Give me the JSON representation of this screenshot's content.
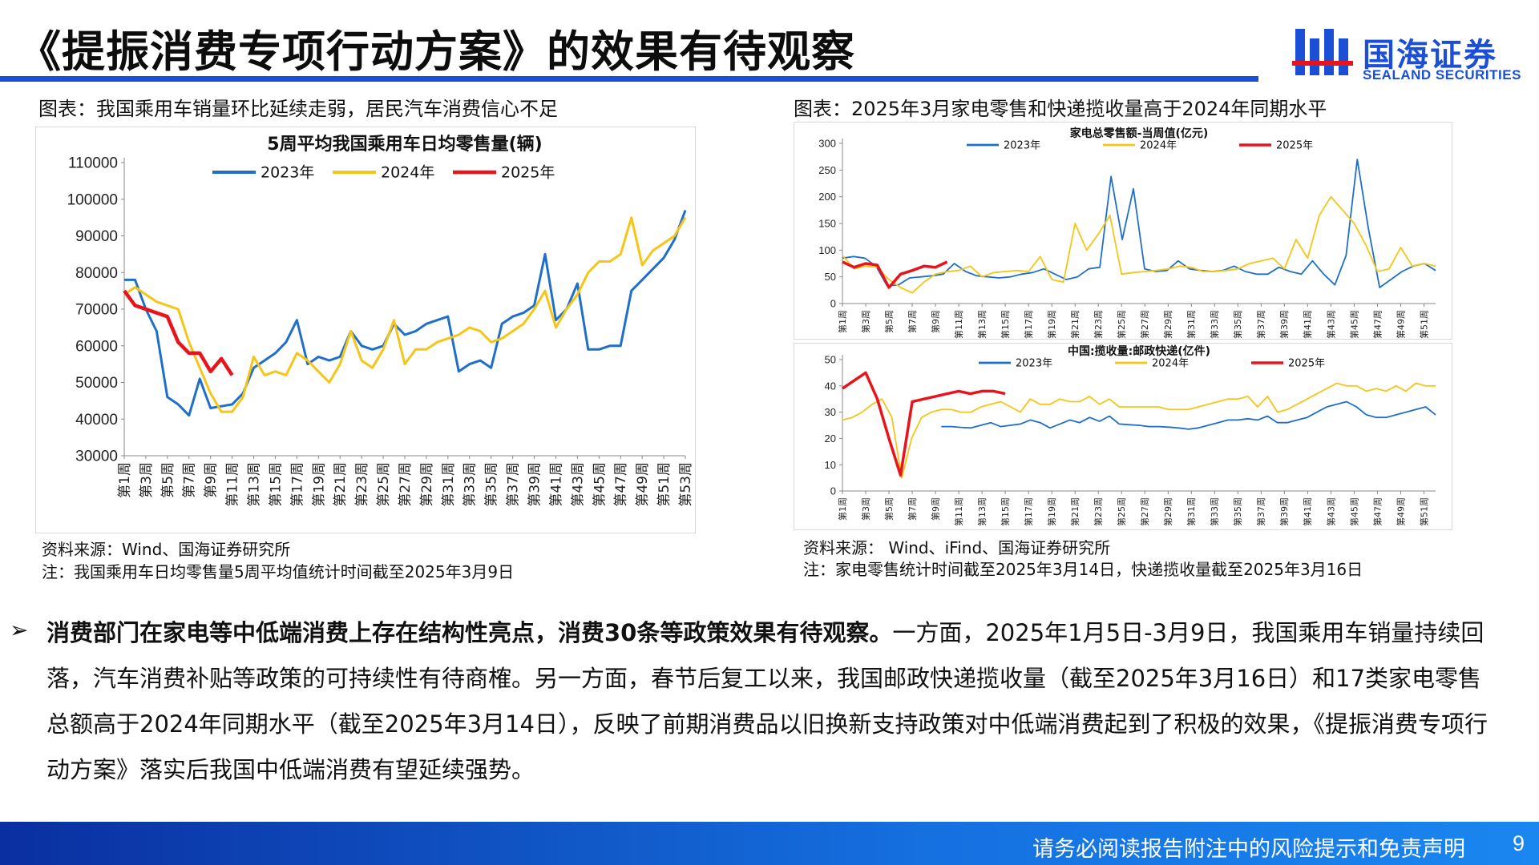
{
  "header": {
    "title": "《提振消费专项行动方案》的效果有待观察",
    "logo_cn": "国海证券",
    "logo_en": "SEALAND SECURITIES"
  },
  "colors": {
    "brand": "#1a4fd6",
    "s2023": "#1f6fc9",
    "s2024": "#f5c518",
    "s2025": "#e8141b"
  },
  "left": {
    "caption": "图表：我国乘用车销量环比延续走弱，居民汽车消费信心不足",
    "source": "资料来源：Wind、国海证券研究所",
    "note": "注：我国乘用车日均零售量5周平均值统计时间截至2025年3月9日"
  },
  "right": {
    "caption": "图表：2025年3月家电零售和快递揽收量高于2024年同期水平",
    "source": "资料来源： Wind、iFind、国海证券研究所",
    "note": "注：家电零售统计时间截至2025年3月14日，快递揽收量截至2025年3月16日"
  },
  "body": {
    "bullet": "➢",
    "bold": "消费部门在家电等中低端消费上存在结构性亮点，消费30条等政策效果有待观察。",
    "rest": "一方面，2025年1月5日-3月9日，我国乘用车销量持续回落，汽车消费补贴等政策的可持续性有待商榷。另一方面，春节后复工以来，我国邮政快递揽收量（截至2025年3月16日）和17类家电零售总额高于2024年同期水平（截至2025年3月14日），反映了前期消费品以旧换新支持政策对中低端消费起到了积极的效果，《提振消费专项行动方案》落实后我国中低端消费有望延续强势。"
  },
  "footer": {
    "disclaimer": "请务必阅读报告附注中的风险提示和免责声明",
    "page": "9"
  },
  "chart_data": [
    {
      "type": "line",
      "title": "5周平均我国乘用车日均零售量(辆)",
      "ylim": [
        30000,
        110000
      ],
      "yticks": [
        30000,
        40000,
        50000,
        60000,
        70000,
        80000,
        90000,
        100000,
        110000
      ],
      "xticks": [
        "第1周",
        "第3周",
        "第5周",
        "第7周",
        "第9周",
        "第11周",
        "第13周",
        "第15周",
        "第17周",
        "第19周",
        "第21周",
        "第23周",
        "第25周",
        "第27周",
        "第29周",
        "第31周",
        "第33周",
        "第35周",
        "第37周",
        "第39周",
        "第41周",
        "第43周",
        "第45周",
        "第47周",
        "第49周",
        "第51周",
        "第53周"
      ],
      "x_range": [
        1,
        53
      ],
      "legend": "top-center",
      "series": [
        {
          "name": "2023年",
          "color": "#1f6fc9",
          "values": [
            78000,
            78000,
            70000,
            64000,
            46000,
            44000,
            41000,
            51000,
            43000,
            43500,
            44000,
            47000,
            54000,
            56000,
            58000,
            61000,
            67000,
            55000,
            57000,
            56000,
            57000,
            64000,
            60000,
            59000,
            60000,
            66000,
            63000,
            64000,
            66000,
            67000,
            68000,
            53000,
            55000,
            56000,
            54000,
            66000,
            68000,
            69000,
            71000,
            85000,
            67000,
            70000,
            77000,
            59000,
            59000,
            60000,
            60000,
            75000,
            78000,
            81000,
            84000,
            89000,
            97000
          ]
        },
        {
          "name": "2024年",
          "color": "#f5c518",
          "values": [
            74000,
            76000,
            74000,
            72000,
            71000,
            70000,
            61000,
            54000,
            47000,
            42000,
            42000,
            46000,
            57000,
            52000,
            53000,
            52000,
            58000,
            56000,
            53000,
            50000,
            55000,
            64000,
            56000,
            54000,
            59000,
            67000,
            55000,
            59000,
            59000,
            61000,
            62000,
            63000,
            65000,
            64000,
            61000,
            62000,
            64000,
            66000,
            70000,
            75000,
            65000,
            70000,
            74000,
            80000,
            83000,
            83000,
            85000,
            95000,
            82000,
            86000,
            88000,
            90000,
            95000
          ]
        },
        {
          "name": "2025年",
          "color": "#e8141b",
          "values": [
            75000,
            71000,
            70000,
            69000,
            68000,
            61000,
            58000,
            58000,
            53000,
            56500,
            52000
          ]
        }
      ]
    },
    {
      "type": "line",
      "title": "家电总零售额-当周值(亿元)",
      "ylim": [
        0,
        300
      ],
      "yticks": [
        0,
        50,
        100,
        150,
        200,
        250,
        300
      ],
      "xticks": [
        "第1周",
        "第3周",
        "第5周",
        "第7周",
        "第9周",
        "第11周",
        "第13周",
        "第15周",
        "第17周",
        "第19周",
        "第21周",
        "第23周",
        "第25周",
        "第27周",
        "第29周",
        "第31周",
        "第33周",
        "第35周",
        "第37周",
        "第39周",
        "第41周",
        "第43周",
        "第45周",
        "第47周",
        "第49周",
        "第51周"
      ],
      "x_range": [
        1,
        52
      ],
      "legend": "top",
      "series": [
        {
          "name": "2023年",
          "color": "#1f6fc9",
          "values": [
            85,
            88,
            85,
            70,
            33,
            35,
            48,
            50,
            52,
            55,
            75,
            60,
            52,
            50,
            48,
            50,
            55,
            58,
            65,
            55,
            45,
            50,
            65,
            68,
            238,
            120,
            215,
            65,
            60,
            62,
            80,
            65,
            62,
            60,
            62,
            70,
            60,
            55,
            55,
            68,
            60,
            55,
            80,
            55,
            35,
            90,
            270,
            140,
            30,
            45,
            60,
            70,
            75,
            62
          ]
        },
        {
          "name": "2024年",
          "color": "#f5c518",
          "values": [
            90,
            65,
            70,
            68,
            45,
            30,
            20,
            40,
            55,
            60,
            62,
            70,
            50,
            58,
            60,
            62,
            60,
            88,
            45,
            40,
            150,
            100,
            130,
            165,
            55,
            58,
            60,
            62,
            65,
            70,
            68,
            60,
            60,
            62,
            65,
            75,
            80,
            85,
            65,
            120,
            85,
            165,
            200,
            175,
            150,
            110,
            60,
            65,
            105,
            70,
            75,
            70
          ]
        },
        {
          "name": "2025年",
          "color": "#e8141b",
          "values": [
            78,
            68,
            75,
            72,
            30,
            55,
            62,
            70,
            68,
            78
          ]
        }
      ]
    },
    {
      "type": "line",
      "title": "中国:揽收量:邮政快递(亿件)",
      "ylim": [
        0,
        50
      ],
      "yticks": [
        0,
        10,
        20,
        30,
        40,
        50
      ],
      "xticks": [
        "第1周",
        "第3周",
        "第5周",
        "第7周",
        "第9周",
        "第11周",
        "第13周",
        "第15周",
        "第17周",
        "第19周",
        "第21周",
        "第23周",
        "第25周",
        "第27周",
        "第29周",
        "第31周",
        "第33周",
        "第35周",
        "第37周",
        "第39周",
        "第41周",
        "第43周",
        "第45周",
        "第47周",
        "第49周",
        "第51周"
      ],
      "x_range": [
        1,
        52
      ],
      "legend": "top",
      "series": [
        {
          "name": "2023年",
          "color": "#1f6fc9",
          "values": [
            null,
            null,
            null,
            null,
            null,
            null,
            null,
            null,
            null,
            null,
            24.5,
            24.5,
            24.2,
            24,
            25,
            26,
            24.5,
            25,
            25.5,
            27,
            26,
            24,
            25.5,
            27,
            26,
            28,
            26.5,
            28.5,
            25.5,
            25.2,
            25,
            24.5,
            24.5,
            24.3,
            24,
            23.5,
            24,
            25,
            26,
            27,
            27,
            27.5,
            27,
            28.5,
            26,
            26,
            27,
            28,
            30,
            32,
            33,
            34,
            32,
            29,
            28,
            28,
            29,
            30,
            31,
            32,
            29
          ]
        },
        {
          "name": "2024年",
          "color": "#f5c518",
          "values": [
            27,
            28,
            30,
            33,
            35,
            28,
            5,
            20,
            28,
            30,
            31,
            31,
            30,
            30,
            32,
            33,
            34,
            32,
            30,
            35,
            33,
            33,
            35,
            34,
            34,
            36,
            33,
            35,
            32,
            32,
            32,
            32,
            32,
            31,
            31,
            31,
            32,
            33,
            34,
            35,
            35,
            36,
            32,
            36,
            30,
            31,
            33,
            35,
            37,
            39,
            41,
            40,
            40,
            38,
            39,
            38,
            40,
            38,
            41,
            40,
            40
          ]
        },
        {
          "name": "2025年",
          "color": "#e8141b",
          "values": [
            39,
            42,
            45,
            35,
            20,
            6,
            34,
            35,
            36,
            37,
            38,
            37,
            38,
            38,
            37
          ]
        }
      ]
    }
  ]
}
